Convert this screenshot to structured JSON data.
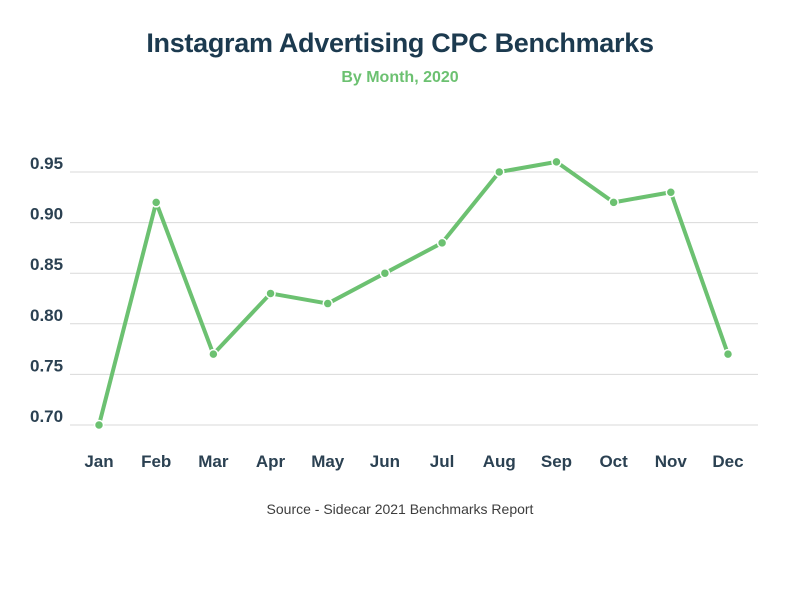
{
  "chart_data": {
    "type": "line",
    "title": "Instagram Advertising CPC Benchmarks",
    "subtitle": "By Month, 2020",
    "source": "Source - Sidecar 2021 Benchmarks Report",
    "categories": [
      "Jan",
      "Feb",
      "Mar",
      "Apr",
      "May",
      "Jun",
      "Jul",
      "Aug",
      "Sep",
      "Oct",
      "Nov",
      "Dec"
    ],
    "series": [
      {
        "values": [
          0.7,
          0.92,
          0.77,
          0.83,
          0.82,
          0.85,
          0.88,
          0.95,
          0.96,
          0.92,
          0.93,
          0.77
        ],
        "color": "#6cc171"
      }
    ],
    "yticks": [
      "0.70",
      "0.75",
      "0.80",
      "0.85",
      "0.90",
      "0.95"
    ],
    "ylim": [
      0.7,
      0.95
    ],
    "grid": true,
    "legend": "none",
    "colors": {
      "title": "#1c3a4f",
      "subtitle": "#6cc171",
      "line": "#6cc171",
      "grid": "#d9d9d9",
      "ticks": "#2b4152"
    }
  }
}
